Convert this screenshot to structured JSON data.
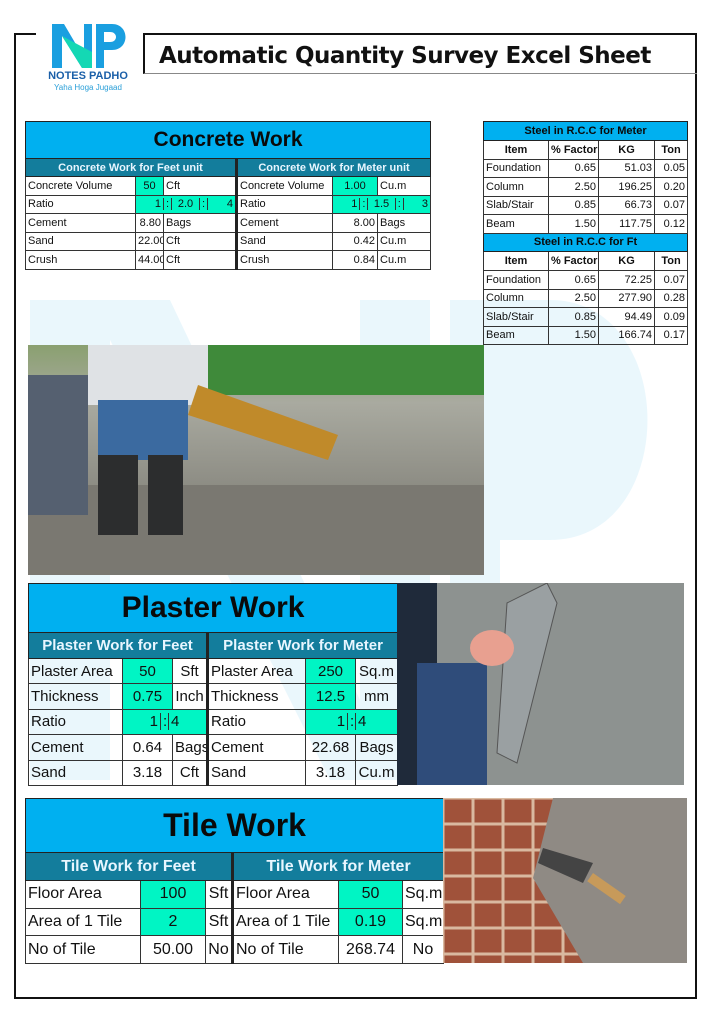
{
  "logo": {
    "letters": "NP",
    "name": "NOTES PADHO",
    "tagline": "Yaha Hoga Jugaad"
  },
  "title": "Automatic Quantity Survey Excel Sheet",
  "colors": {
    "header": "#00b0f0",
    "subheader": "#137d9c",
    "input": "#00f5c4"
  },
  "concrete": {
    "title": "Concrete Work",
    "feet": {
      "heading": "Concrete Work for Feet unit",
      "rows": [
        {
          "label": "Concrete Volume",
          "value": "50",
          "unit": "Cft",
          "input": true
        },
        {
          "label": "Cement",
          "value": "8.80",
          "unit": "Bags"
        },
        {
          "label": "Sand",
          "value": "22.00",
          "unit": "Cft"
        },
        {
          "label": "Crush",
          "value": "44.00",
          "unit": "Cft"
        }
      ],
      "ratio": {
        "label": "Ratio",
        "a": "1",
        "sep": ":",
        "b": "2.0",
        "c": "4"
      }
    },
    "meter": {
      "heading": "Concrete Work for Meter unit",
      "rows": [
        {
          "label": "Concrete Volume",
          "value": "1.00",
          "unit": "Cu.m",
          "input": true
        },
        {
          "label": "Cement",
          "value": "8.00",
          "unit": "Bags"
        },
        {
          "label": "Sand",
          "value": "0.42",
          "unit": "Cu.m"
        },
        {
          "label": "Crush",
          "value": "0.84",
          "unit": "Cu.m"
        }
      ],
      "ratio": {
        "label": "Ratio",
        "a": "1",
        "sep": ":",
        "b": "1.5",
        "c": "3"
      }
    }
  },
  "steel": [
    {
      "title": "Steel in R.C.C for Meter",
      "columns": [
        "Item",
        "% Factor",
        "KG",
        "Ton"
      ],
      "rows": [
        [
          "Foundation",
          "0.65",
          "51.03",
          "0.05"
        ],
        [
          "Column",
          "2.50",
          "196.25",
          "0.20"
        ],
        [
          "Slab/Stair",
          "0.85",
          "66.73",
          "0.07"
        ],
        [
          "Beam",
          "1.50",
          "117.75",
          "0.12"
        ]
      ]
    },
    {
      "title": "Steel in R.C.C for Ft",
      "columns": [
        "Item",
        "% Factor",
        "KG",
        "Ton"
      ],
      "rows": [
        [
          "Foundation",
          "0.65",
          "72.25",
          "0.07"
        ],
        [
          "Column",
          "2.50",
          "277.90",
          "0.28"
        ],
        [
          "Slab/Stair",
          "0.85",
          "94.49",
          "0.09"
        ],
        [
          "Beam",
          "1.50",
          "166.74",
          "0.17"
        ]
      ]
    }
  ],
  "plaster": {
    "title": "Plaster Work",
    "feet": {
      "heading": "Plaster Work for Feet",
      "rows": [
        {
          "label": "Plaster Area",
          "value": "50",
          "unit": "Sft",
          "input": true
        },
        {
          "label": "Thickness",
          "value": "0.75",
          "unit": "Inch",
          "input": true
        },
        {
          "label": "Ratio",
          "a": "1",
          "sep": ":",
          "b": "4",
          "ratio": true
        },
        {
          "label": "Cement",
          "value": "0.64",
          "unit": "Bags"
        },
        {
          "label": "Sand",
          "value": "3.18",
          "unit": "Cft"
        }
      ]
    },
    "meter": {
      "heading": "Plaster Work for Meter",
      "rows": [
        {
          "label": "Plaster Area",
          "value": "250",
          "unit": "Sq.m",
          "input": true
        },
        {
          "label": "Thickness",
          "value": "12.5",
          "unit": "mm",
          "input": true
        },
        {
          "label": "Ratio",
          "a": "1",
          "sep": ":",
          "b": "4",
          "ratio": true
        },
        {
          "label": "Cement",
          "value": "22.68",
          "unit": "Bags"
        },
        {
          "label": "Sand",
          "value": "3.18",
          "unit": "Cu.m"
        }
      ]
    }
  },
  "tile": {
    "title": "Tile Work",
    "feet": {
      "heading": "Tile Work for Feet",
      "rows": [
        {
          "label": "Floor Area",
          "value": "100",
          "unit": "Sft",
          "input": true
        },
        {
          "label": "Area of 1 Tile",
          "value": "2",
          "unit": "Sft",
          "input": true
        },
        {
          "label": "No of Tile",
          "value": "50.00",
          "unit": "No"
        }
      ]
    },
    "meter": {
      "heading": "Tile Work for Meter",
      "rows": [
        {
          "label": "Floor Area",
          "value": "50",
          "unit": "Sq.m",
          "input": true
        },
        {
          "label": "Area of 1 Tile",
          "value": "0.19",
          "unit": "Sq.m",
          "input": true
        },
        {
          "label": "No of Tile",
          "value": "268.74",
          "unit": "No"
        }
      ]
    }
  }
}
